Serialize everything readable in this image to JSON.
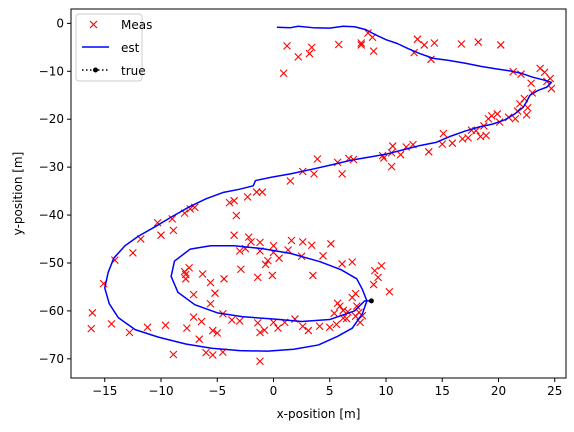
{
  "chart_data": {
    "type": "line",
    "xlabel": "x-position [m]",
    "ylabel": "y-position [m]",
    "xlim": [
      -18,
      26
    ],
    "ylim": [
      -74,
      3
    ],
    "xticks": [
      -15,
      -10,
      -5,
      0,
      5,
      10,
      15,
      20,
      25
    ],
    "yticks": [
      0,
      -10,
      -20,
      -30,
      -40,
      -50,
      -60,
      -70
    ],
    "grid": false,
    "legend_position": "top-left",
    "series": [
      {
        "name": "Meas",
        "style": "markers-x",
        "color": "#ff0000",
        "points": [
          [
            0.9,
            -10.4
          ],
          [
            1.2,
            -4.7
          ],
          [
            2.2,
            -7.0
          ],
          [
            3.2,
            -6.3
          ],
          [
            3.4,
            -5.0
          ],
          [
            5.8,
            -4.4
          ],
          [
            7.8,
            -4.5
          ],
          [
            7.8,
            -4.1
          ],
          [
            8.4,
            -2.0
          ],
          [
            8.8,
            -2.9
          ],
          [
            8.9,
            -5.8
          ],
          [
            12.5,
            -6.1
          ],
          [
            12.8,
            -3.3
          ],
          [
            13.4,
            -4.5
          ],
          [
            14.0,
            -7.5
          ],
          [
            14.3,
            -4.1
          ],
          [
            16.7,
            -4.3
          ],
          [
            18.2,
            -3.9
          ],
          [
            20.2,
            -4.5
          ],
          [
            21.3,
            -10.1
          ],
          [
            22.0,
            -10.6
          ],
          [
            22.9,
            -12.5
          ],
          [
            23.7,
            -9.4
          ],
          [
            24.1,
            -10.2
          ],
          [
            24.6,
            -11.5
          ],
          [
            24.7,
            -13.6
          ],
          [
            24.3,
            -12.1
          ],
          [
            23.0,
            -14.5
          ],
          [
            22.3,
            -15.7
          ],
          [
            21.9,
            -16.8
          ],
          [
            22.6,
            -17.6
          ],
          [
            21.7,
            -18.3
          ],
          [
            22.5,
            -19.1
          ],
          [
            21.5,
            -19.9
          ],
          [
            20.9,
            -19.6
          ],
          [
            19.9,
            -18.9
          ],
          [
            20.1,
            -20.6
          ],
          [
            19.4,
            -19.3
          ],
          [
            19.1,
            -19.9
          ],
          [
            18.7,
            -21.4
          ],
          [
            18.9,
            -23.4
          ],
          [
            18.0,
            -22.4
          ],
          [
            17.6,
            -22.3
          ],
          [
            18.4,
            -23.6
          ],
          [
            17.3,
            -23.9
          ],
          [
            16.8,
            -24.1
          ],
          [
            15.9,
            -25.0
          ],
          [
            15.0,
            -25.2
          ],
          [
            15.1,
            -23.0
          ],
          [
            13.8,
            -26.8
          ],
          [
            12.4,
            -25.3
          ],
          [
            11.8,
            -25.8
          ],
          [
            10.6,
            -25.6
          ],
          [
            11.3,
            -27.4
          ],
          [
            10.5,
            -27.0
          ],
          [
            9.8,
            -28.1
          ],
          [
            10.5,
            -29.9
          ],
          [
            9.7,
            -27.6
          ],
          [
            7.1,
            -28.4
          ],
          [
            6.7,
            -28.2
          ],
          [
            5.7,
            -29.0
          ],
          [
            6.1,
            -31.4
          ],
          [
            3.9,
            -28.3
          ],
          [
            3.6,
            -31.4
          ],
          [
            2.6,
            -30.9
          ],
          [
            1.5,
            -32.9
          ],
          [
            -1.5,
            -35.2
          ],
          [
            -1.0,
            -35.2
          ],
          [
            -2.3,
            -36.2
          ],
          [
            -3.5,
            -37.0
          ],
          [
            -3.9,
            -37.4
          ],
          [
            -3.3,
            -40.1
          ],
          [
            -3.5,
            -44.2
          ],
          [
            -2.2,
            -44.6
          ],
          [
            -2.0,
            -45.6
          ],
          [
            -1.2,
            -45.7
          ],
          [
            0.0,
            -46.4
          ],
          [
            1.6,
            -45.3
          ],
          [
            2.6,
            -45.6
          ],
          [
            3.4,
            -46.3
          ],
          [
            5.1,
            -46.0
          ],
          [
            4.4,
            -48.5
          ],
          [
            1.3,
            -47.3
          ],
          [
            0.0,
            -47.8
          ],
          [
            -1.2,
            -47.5
          ],
          [
            -2.5,
            -47.0
          ],
          [
            -3.0,
            -47.5
          ],
          [
            -7.0,
            -38.4
          ],
          [
            -7.4,
            -38.7
          ],
          [
            -7.9,
            -39.6
          ],
          [
            -9.0,
            -40.8
          ],
          [
            -8.9,
            -43.2
          ],
          [
            -10.3,
            -41.6
          ],
          [
            -10.0,
            -44.2
          ],
          [
            -11.8,
            -45.0
          ],
          [
            -12.5,
            -47.9
          ],
          [
            -14.1,
            -49.4
          ],
          [
            -15.1,
            -54.3
          ],
          [
            -16.1,
            -60.4
          ],
          [
            -16.2,
            -63.7
          ],
          [
            -14.4,
            -62.7
          ],
          [
            -12.8,
            -64.5
          ],
          [
            -11.2,
            -63.4
          ],
          [
            -9.6,
            -63.0
          ],
          [
            -8.9,
            -69.1
          ],
          [
            -7.7,
            -63.6
          ],
          [
            -6.6,
            -65.9
          ],
          [
            -6.0,
            -68.7
          ],
          [
            -5.4,
            -69.2
          ],
          [
            -5.0,
            -64.6
          ],
          [
            -4.5,
            -68.6
          ],
          [
            -5.6,
            -58.5
          ],
          [
            -5.2,
            -56.3
          ],
          [
            -4.5,
            -60.6
          ],
          [
            -3.7,
            -61.9
          ],
          [
            -3.0,
            -62.1
          ],
          [
            -1.4,
            -62.5
          ],
          [
            -1.2,
            -64.5
          ],
          [
            -0.8,
            -64.0
          ],
          [
            -1.2,
            -70.5
          ],
          [
            0.0,
            -62.4
          ],
          [
            0.4,
            -63.6
          ],
          [
            1.0,
            -62.4
          ],
          [
            1.9,
            -61.7
          ],
          [
            2.6,
            -63.2
          ],
          [
            3.1,
            -64.1
          ],
          [
            4.1,
            -63.2
          ],
          [
            5.0,
            -63.4
          ],
          [
            5.6,
            -62.8
          ],
          [
            6.2,
            -61.5
          ],
          [
            7.3,
            -61.1
          ],
          [
            7.6,
            -60.3
          ],
          [
            7.4,
            -59.0
          ],
          [
            7.7,
            -62.4
          ],
          [
            6.6,
            -60.2
          ],
          [
            6.2,
            -59.9
          ],
          [
            5.9,
            -59.0
          ],
          [
            5.7,
            -58.4
          ],
          [
            5.4,
            -60.5
          ],
          [
            6.5,
            -61.6
          ],
          [
            7.0,
            -57.2
          ],
          [
            7.3,
            -56.4
          ],
          [
            7.9,
            -61.0
          ],
          [
            8.9,
            -54.5
          ],
          [
            9.3,
            -53.0
          ],
          [
            9.6,
            -50.6
          ],
          [
            9.0,
            -51.6
          ],
          [
            10.3,
            -56.0
          ],
          [
            7.0,
            -49.8
          ],
          [
            6.1,
            -50.2
          ],
          [
            3.5,
            -52.6
          ],
          [
            2.5,
            -48.6
          ],
          [
            0.5,
            -49.0
          ],
          [
            -0.5,
            -49.5
          ],
          [
            -0.7,
            -50.3
          ],
          [
            -0.1,
            -52.6
          ],
          [
            -1.4,
            -53.0
          ],
          [
            -2.9,
            -51.3
          ],
          [
            -4.4,
            -53.3
          ],
          [
            -5.6,
            -54.1
          ],
          [
            -6.3,
            -52.3
          ],
          [
            -7.5,
            -51.0
          ],
          [
            -7.9,
            -51.8
          ],
          [
            -7.8,
            -52.4
          ],
          [
            -7.8,
            -53.3
          ],
          [
            -7.1,
            -56.6
          ],
          [
            -7.1,
            -61.3
          ],
          [
            -6.4,
            -62.2
          ],
          [
            -5.4,
            -64.1
          ]
        ]
      },
      {
        "name": "est",
        "style": "line",
        "color": "#0000ff",
        "points": [
          [
            0.3,
            -0.8
          ],
          [
            1.5,
            -0.9
          ],
          [
            2.2,
            -0.6
          ],
          [
            3.5,
            -0.9
          ],
          [
            5.0,
            -1.0
          ],
          [
            6.2,
            -0.6
          ],
          [
            7.2,
            -0.7
          ],
          [
            8.2,
            -1.3
          ],
          [
            9.0,
            -2.3
          ],
          [
            10.0,
            -3.4
          ],
          [
            11.0,
            -4.2
          ],
          [
            12.0,
            -5.3
          ],
          [
            13.0,
            -6.3
          ],
          [
            14.2,
            -7.3
          ],
          [
            15.5,
            -7.7
          ],
          [
            17.0,
            -8.3
          ],
          [
            18.5,
            -9.0
          ],
          [
            19.8,
            -9.5
          ],
          [
            21.0,
            -9.9
          ],
          [
            22.0,
            -10.4
          ],
          [
            23.0,
            -11.2
          ],
          [
            24.0,
            -11.8
          ],
          [
            24.7,
            -12.3
          ],
          [
            24.3,
            -13.3
          ],
          [
            23.5,
            -14.0
          ],
          [
            22.8,
            -15.0
          ],
          [
            22.5,
            -16.3
          ],
          [
            22.2,
            -17.5
          ],
          [
            21.5,
            -18.8
          ],
          [
            20.6,
            -20.1
          ],
          [
            19.5,
            -21.0
          ],
          [
            18.3,
            -21.6
          ],
          [
            17.0,
            -22.5
          ],
          [
            15.8,
            -23.5
          ],
          [
            14.5,
            -24.8
          ],
          [
            13.0,
            -25.5
          ],
          [
            11.5,
            -26.4
          ],
          [
            10.0,
            -27.3
          ],
          [
            8.5,
            -27.9
          ],
          [
            7.0,
            -28.5
          ],
          [
            5.2,
            -29.5
          ],
          [
            3.5,
            -30.4
          ],
          [
            1.5,
            -31.4
          ],
          [
            -0.2,
            -32.1
          ],
          [
            -1.6,
            -32.8
          ],
          [
            -1.8,
            -33.9
          ],
          [
            -3.0,
            -34.6
          ],
          [
            -4.5,
            -35.3
          ],
          [
            -6.0,
            -36.6
          ],
          [
            -7.5,
            -38.3
          ],
          [
            -9.0,
            -40.3
          ],
          [
            -10.5,
            -42.4
          ],
          [
            -12.0,
            -44.4
          ],
          [
            -13.2,
            -46.4
          ],
          [
            -14.2,
            -49.0
          ],
          [
            -14.7,
            -52.0
          ],
          [
            -15.0,
            -55.2
          ],
          [
            -14.6,
            -58.5
          ],
          [
            -13.8,
            -61.4
          ],
          [
            -12.3,
            -63.9
          ],
          [
            -10.2,
            -65.5
          ],
          [
            -7.8,
            -66.9
          ],
          [
            -5.5,
            -67.8
          ],
          [
            -3.0,
            -68.3
          ],
          [
            -0.5,
            -68.4
          ],
          [
            1.8,
            -68.0
          ],
          [
            4.0,
            -67.1
          ],
          [
            5.7,
            -65.3
          ],
          [
            7.0,
            -63.6
          ],
          [
            7.9,
            -60.6
          ],
          [
            8.3,
            -57.9
          ],
          [
            7.9,
            -55.5
          ],
          [
            7.4,
            -53.3
          ],
          [
            6.0,
            -51.4
          ],
          [
            4.1,
            -49.7
          ],
          [
            1.5,
            -48.0
          ],
          [
            -1.0,
            -47.0
          ],
          [
            -3.5,
            -46.4
          ],
          [
            -5.6,
            -46.4
          ],
          [
            -7.4,
            -47.1
          ],
          [
            -8.8,
            -49.6
          ],
          [
            -9.1,
            -52.8
          ],
          [
            -8.5,
            -56.1
          ],
          [
            -7.0,
            -58.7
          ],
          [
            -5.0,
            -60.4
          ],
          [
            -2.8,
            -61.2
          ],
          [
            0.0,
            -61.7
          ],
          [
            2.5,
            -62.2
          ],
          [
            5.0,
            -61.8
          ],
          [
            7.2,
            -60.0
          ],
          [
            8.1,
            -57.9
          ],
          [
            8.7,
            -57.9
          ]
        ]
      },
      {
        "name": "true",
        "style": "dotted-line-with-point-markers",
        "color": "#000000",
        "points": [
          [
            8.7,
            -57.9
          ]
        ]
      }
    ]
  }
}
